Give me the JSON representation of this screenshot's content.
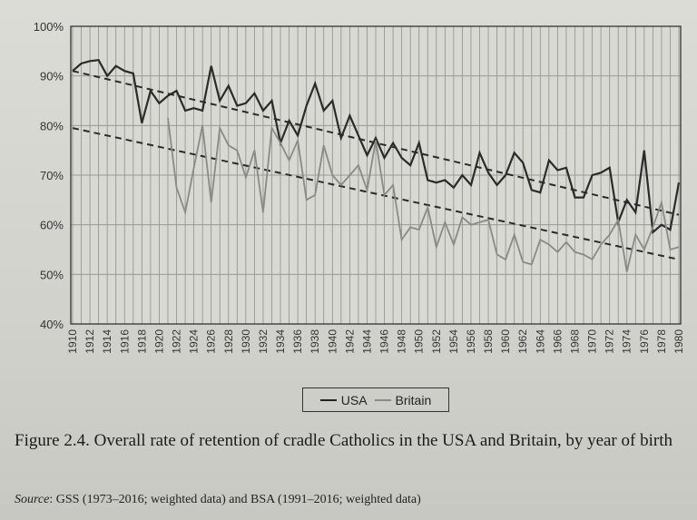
{
  "chart_data": {
    "type": "line",
    "title": "",
    "xlabel": "",
    "ylabel": "",
    "ylim": [
      40,
      100
    ],
    "xlim": [
      1910,
      1980
    ],
    "y_ticks": [
      "40%",
      "50%",
      "60%",
      "70%",
      "80%",
      "90%",
      "100%"
    ],
    "y_tick_values": [
      40,
      50,
      60,
      70,
      80,
      90,
      100
    ],
    "x_ticks": [
      "1910",
      "1912",
      "1914",
      "1916",
      "1918",
      "1920",
      "1922",
      "1924",
      "1926",
      "1928",
      "1930",
      "1932",
      "1934",
      "1936",
      "1938",
      "1940",
      "1942",
      "1944",
      "1946",
      "1948",
      "1950",
      "1952",
      "1954",
      "1956",
      "1958",
      "1960",
      "1962",
      "1964",
      "1966",
      "1968",
      "1970",
      "1972",
      "1974",
      "1976",
      "1978",
      "1980"
    ],
    "grid": "on",
    "legend_position": "bottom-center",
    "series": [
      {
        "name": "USA",
        "color": "#2a2a2a",
        "x": [
          1910,
          1911,
          1912,
          1913,
          1914,
          1915,
          1916,
          1917,
          1918,
          1919,
          1920,
          1921,
          1922,
          1923,
          1924,
          1925,
          1926,
          1927,
          1928,
          1929,
          1930,
          1931,
          1932,
          1933,
          1934,
          1935,
          1936,
          1937,
          1938,
          1939,
          1940,
          1941,
          1942,
          1943,
          1944,
          1945,
          1946,
          1947,
          1948,
          1949,
          1950,
          1951,
          1952,
          1953,
          1954,
          1955,
          1956,
          1957,
          1958,
          1959,
          1960,
          1961,
          1962,
          1963,
          1964,
          1965,
          1966,
          1967,
          1968,
          1969,
          1970,
          1971,
          1972,
          1973,
          1974,
          1975,
          1976,
          1977,
          1978,
          1979,
          1980
        ],
        "values": [
          91,
          92.5,
          93,
          93.2,
          90,
          92,
          91,
          90.5,
          80.5,
          87,
          84.5,
          86,
          87,
          83,
          83.5,
          83,
          92,
          85,
          88,
          84,
          84.5,
          86.5,
          83,
          85,
          76.5,
          81,
          78,
          84,
          88.5,
          83,
          85,
          77.5,
          82,
          78,
          74,
          77.5,
          73.5,
          76.5,
          73.5,
          72,
          76.5,
          69,
          68.5,
          69,
          67.5,
          70,
          68,
          74.5,
          70.5,
          68,
          70,
          74.5,
          72.5,
          67,
          66.5,
          73,
          71,
          71.5,
          65.5,
          65.5,
          70,
          70.5,
          71.5,
          60.5,
          65,
          62.5,
          75,
          58.5,
          60,
          59,
          68.5
        ]
      },
      {
        "name": "Britain",
        "color": "#8a8a86",
        "x": [
          1921,
          1922,
          1923,
          1924,
          1925,
          1926,
          1927,
          1928,
          1929,
          1930,
          1931,
          1932,
          1933,
          1934,
          1935,
          1936,
          1937,
          1938,
          1939,
          1940,
          1941,
          1942,
          1943,
          1944,
          1945,
          1946,
          1947,
          1948,
          1949,
          1950,
          1951,
          1952,
          1953,
          1954,
          1955,
          1956,
          1957,
          1958,
          1959,
          1960,
          1961,
          1962,
          1963,
          1964,
          1965,
          1966,
          1967,
          1968,
          1969,
          1970,
          1971,
          1972,
          1973,
          1974,
          1975,
          1976,
          1977,
          1978,
          1979,
          1980
        ],
        "values": [
          81.5,
          67.5,
          62.5,
          71.5,
          80,
          64.5,
          79.5,
          76,
          75,
          69.5,
          75,
          62.5,
          79.5,
          76.5,
          73,
          77,
          65,
          66,
          76,
          70,
          68,
          70,
          72,
          67,
          77,
          66,
          68,
          57,
          59.5,
          59,
          63.5,
          55.5,
          60.5,
          56,
          61.5,
          60,
          60.5,
          61,
          54,
          53,
          58,
          52.5,
          52,
          57,
          56,
          54.5,
          56.5,
          54.5,
          54,
          53,
          56,
          58,
          61,
          50.5,
          58,
          55,
          59.5,
          64.5,
          55,
          55.5
        ]
      },
      {
        "name": "USA trend",
        "style": "dashed",
        "color": "#2a2a2a",
        "x": [
          1910,
          1980
        ],
        "values": [
          91,
          62
        ]
      },
      {
        "name": "Britain trend",
        "style": "dashed",
        "color": "#2a2a2a",
        "x": [
          1910,
          1980
        ],
        "values": [
          79.5,
          53
        ]
      }
    ],
    "legend": [
      "USA",
      "Britain"
    ]
  },
  "caption": {
    "label": "Figure 2.4.",
    "text": "Overall rate of retention of cradle Catholics in the USA and Britain, by year of birth"
  },
  "source": {
    "label": "Source",
    "text": ": GSS (1973–2016; weighted data) and BSA (1991–2016; weighted data)"
  },
  "legend": {
    "usa": "USA",
    "britain": "Britain"
  }
}
